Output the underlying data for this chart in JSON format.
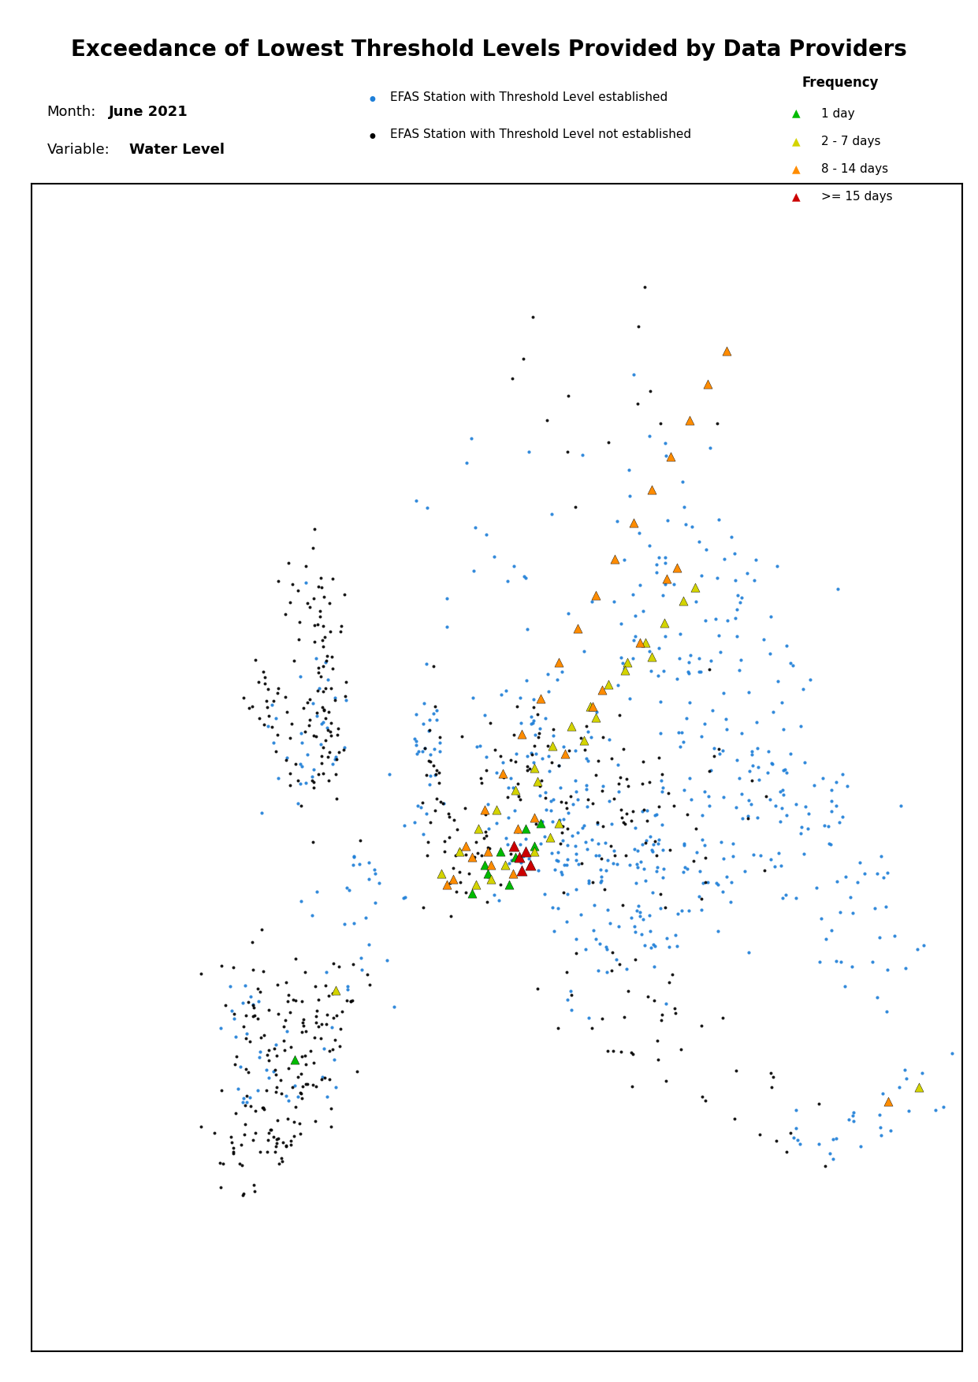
{
  "title": "Exceedance of Lowest Threshold Levels Provided by Data Providers",
  "month_label": "Month:",
  "month_value": "June 2021",
  "variable_label": "Variable:",
  "variable_value": "Water Level",
  "legend_title": "Frequency",
  "freq_labels": [
    "1 day",
    "2 - 7 days",
    "8 - 14 days",
    ">= 15 days"
  ],
  "freq_colors": [
    "#00BB00",
    "#D4D400",
    "#FF8C00",
    "#CC0000"
  ],
  "station_color_blue": "#1E7FD8",
  "station_color_black": "#000000",
  "station_label_blue": "EFAS Station with Threshold Level established",
  "station_label_black": "EFAS Station with Threshold Level not established",
  "map_extent_lon": [
    -25,
    50
  ],
  "map_extent_lat": [
    30,
    72
  ],
  "title_fontsize": 20,
  "header_fontsize": 13,
  "legend_fontsize": 11,
  "background_color": "#ffffff"
}
